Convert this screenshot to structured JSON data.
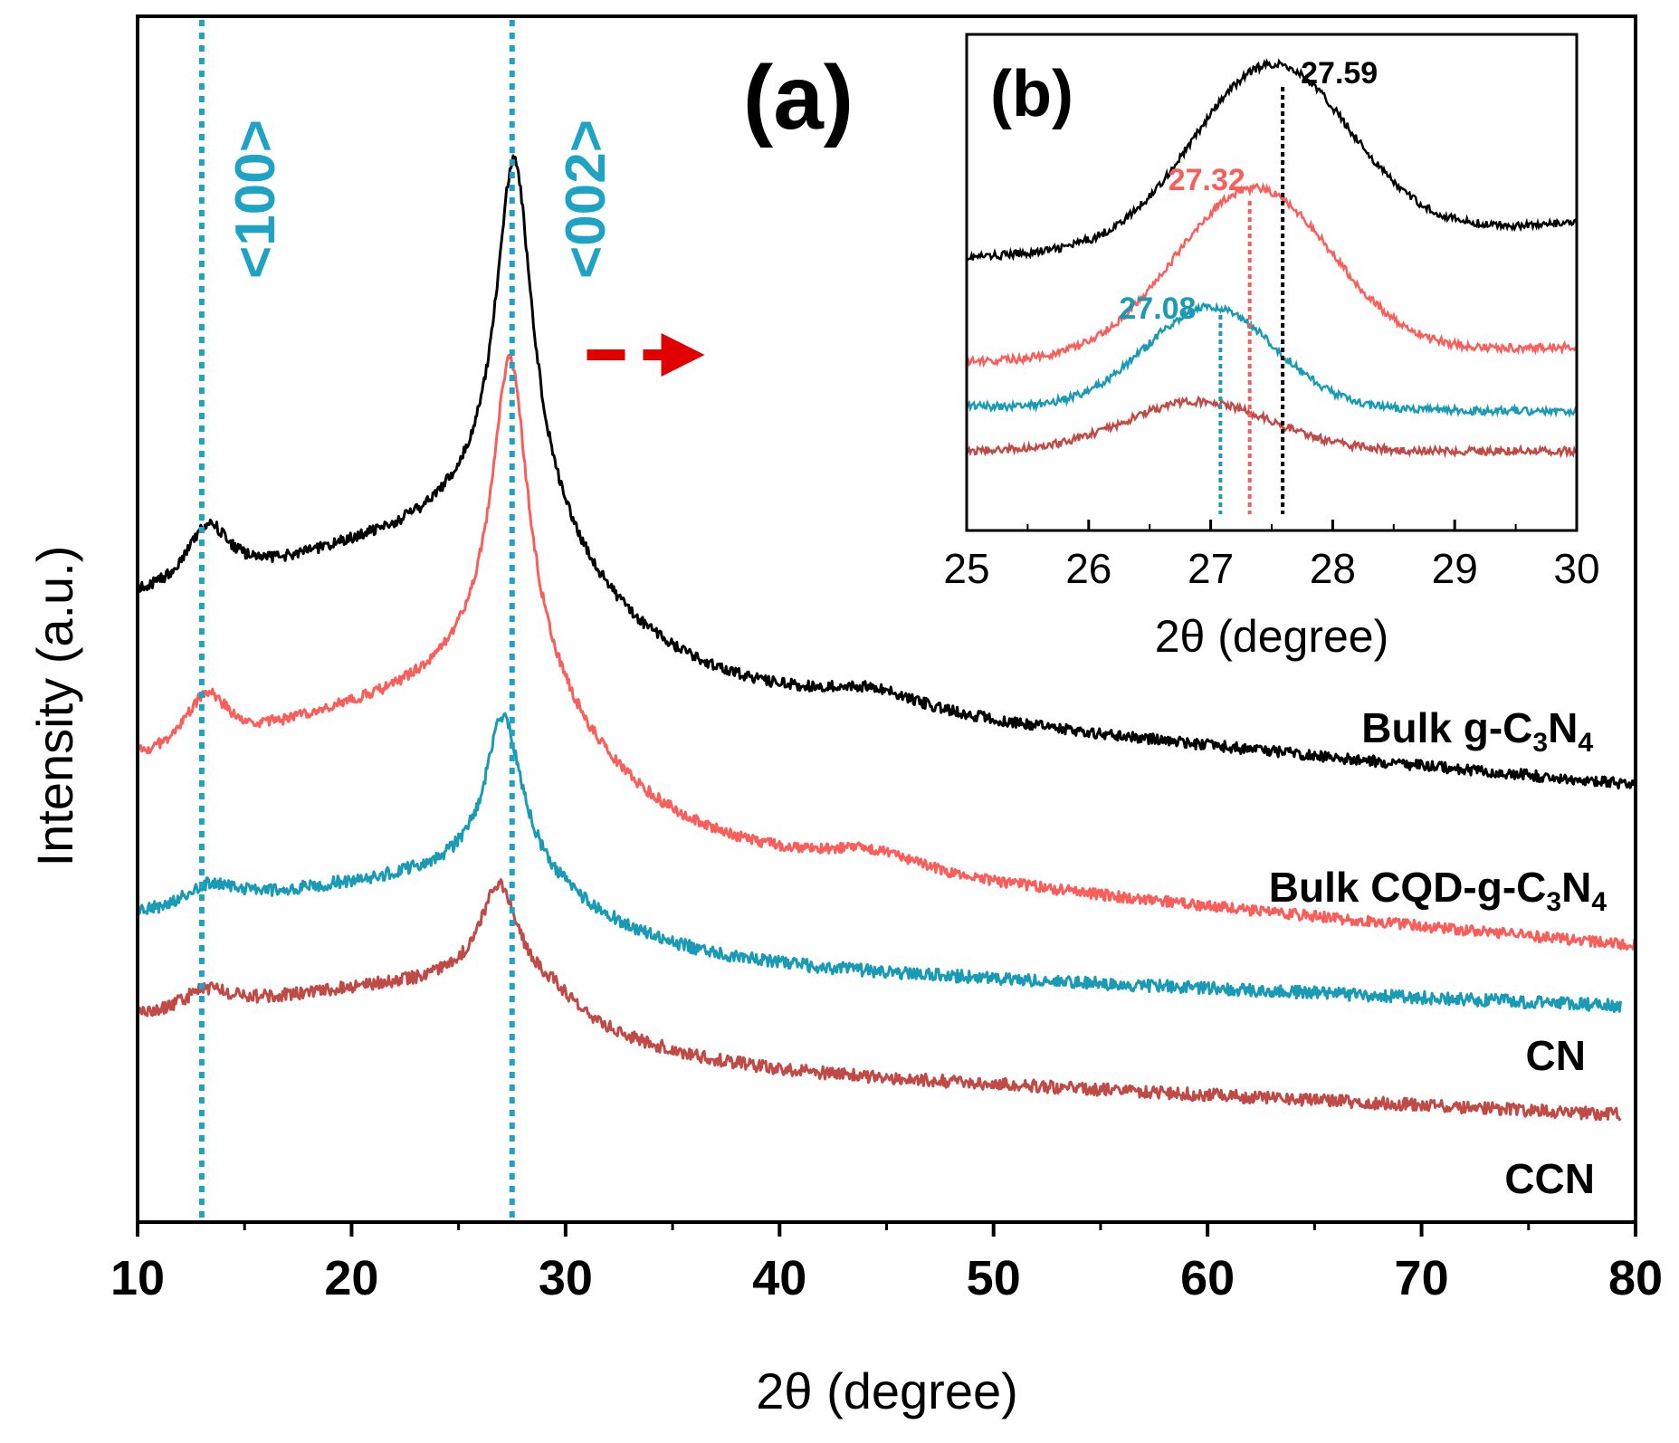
{
  "chart_data": [
    {
      "type": "line",
      "panel_label": "(a)",
      "xlabel": "2θ (degree)",
      "ylabel": "Intensity (a.u.)",
      "xlim": [
        10,
        80
      ],
      "xticks": [
        10,
        20,
        30,
        40,
        50,
        60,
        70,
        80
      ],
      "xtick_labels": [
        "10",
        "20",
        "30",
        "40",
        "50",
        "60",
        "70",
        "80"
      ],
      "y_units": "a.u. (traces vertically offset; no y tick labels)",
      "reference_lines": [
        {
          "x": 13.0,
          "label": "<100>",
          "color": "#1fa3c4"
        },
        {
          "x": 27.5,
          "label": "<002>",
          "color": "#1fa3c4"
        }
      ],
      "annotation_arrow": {
        "from_x": 31,
        "to_x": 36.5,
        "color": "#e00000",
        "style": "dashed",
        "target": "(b)"
      },
      "series": [
        {
          "name": "Bulk g-C3N4",
          "label_main": "Bulk g-C",
          "sub1": "3",
          "label_mid": "N",
          "sub2": "4",
          "color": "#000000",
          "baseline": 110,
          "tail": 0,
          "noise": 6,
          "peaks": [
            {
              "x": 13.3,
              "height": 68,
              "width": 1.3
            },
            {
              "x": 27.6,
              "height": 370,
              "width": 1.0
            },
            {
              "x": 27.6,
              "height": 130,
              "width": 4.0
            },
            {
              "x": 44.2,
              "height": 22,
              "width": 3.0
            }
          ],
          "broad": 100
        },
        {
          "name": "Bulk CQD-g-C3N4",
          "label_main": "Bulk CQD-g-C",
          "sub1": "3",
          "label_mid": "N",
          "sub2": "4",
          "color": "#fa5e5a",
          "baseline": 110,
          "tail": 0,
          "noise": 6,
          "peaks": [
            {
              "x": 13.2,
              "height": 62,
              "width": 1.3
            },
            {
              "x": 27.4,
              "height": 325,
              "width": 1.0
            },
            {
              "x": 27.4,
              "height": 130,
              "width": 4.0
            },
            {
              "x": 44.2,
              "height": 22,
              "width": 3.0
            }
          ],
          "broad": 100
        },
        {
          "name": "CN",
          "label_main": "CN",
          "sub1": "",
          "label_mid": "",
          "sub2": "",
          "color": "#1a9bb5",
          "baseline": 75,
          "tail": 0,
          "noise": 7,
          "peaks": [
            {
              "x": 13.4,
              "height": 28,
              "width": 1.8
            },
            {
              "x": 27.1,
              "height": 165,
              "width": 1.0
            },
            {
              "x": 27.4,
              "height": 55,
              "width": 4.0
            }
          ],
          "broad": 60
        },
        {
          "name": "CCN",
          "label_main": "CCN",
          "sub1": "",
          "label_mid": "",
          "sub2": "",
          "color": "#c04a46",
          "baseline": 70,
          "tail": 0,
          "noise": 7,
          "peaks": [
            {
              "x": 13.2,
              "height": 25,
              "width": 1.5
            },
            {
              "x": 26.9,
              "height": 110,
              "width": 1.1
            },
            {
              "x": 27.2,
              "height": 35,
              "width": 4.0
            },
            {
              "x": 29.5,
              "height": 12,
              "width": 1.0
            }
          ],
          "broad": 60
        }
      ]
    },
    {
      "type": "line",
      "panel_label": "(b)",
      "xlabel": "2θ (degree)",
      "xlim": [
        25,
        30
      ],
      "xticks": [
        25,
        26,
        27,
        28,
        29,
        30
      ],
      "xtick_labels": [
        "25",
        "26",
        "27",
        "28",
        "29",
        "30"
      ],
      "peak_positions": [
        {
          "x": 27.59,
          "label": "27.59",
          "color": "#000000"
        },
        {
          "x": 27.32,
          "label": "27.32",
          "color": "#fa5e5a"
        },
        {
          "x": 27.08,
          "label": "27.08",
          "color": "#1a9bb5"
        }
      ],
      "series": [
        {
          "name": "Bulk g-C3N4",
          "color": "#000000",
          "center": 27.5,
          "peak_level": 0.94,
          "left_level": 0.55,
          "right_level": 0.62,
          "width": 0.9
        },
        {
          "name": "Bulk CQD-g-C3N4",
          "color": "#fa5e5a",
          "center": 27.35,
          "peak_level": 0.69,
          "left_level": 0.34,
          "right_level": 0.37,
          "width": 0.9
        },
        {
          "name": "CN",
          "color": "#1a9bb5",
          "center": 27.0,
          "peak_level": 0.45,
          "left_level": 0.25,
          "right_level": 0.24,
          "width": 0.75
        },
        {
          "name": "CCN",
          "color": "#c04a46",
          "center": 26.9,
          "peak_level": 0.26,
          "left_level": 0.16,
          "right_level": 0.16,
          "width": 0.85
        }
      ]
    }
  ]
}
